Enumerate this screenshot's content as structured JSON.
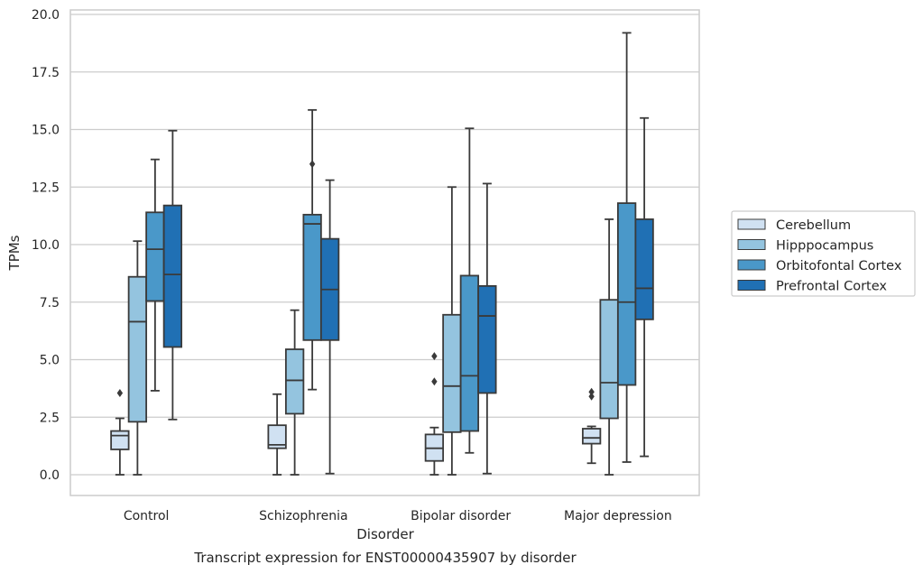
{
  "chart_data": {
    "type": "box",
    "title": "",
    "caption": "Transcript expression for ENST00000435907 by disorder",
    "xlabel": "Disorder",
    "ylabel": "TPMs",
    "ylim": [
      -0.9,
      20.2
    ],
    "yticks": [
      "0.0",
      "2.5",
      "5.0",
      "7.5",
      "10.0",
      "12.5",
      "15.0",
      "17.5",
      "20.0"
    ],
    "grid": "horizontal",
    "legend_position": "right",
    "categories": [
      "Control",
      "Schizophrenia",
      "Bipolar disorder",
      "Major depression"
    ],
    "series": [
      {
        "name": "Cerebellum",
        "color": "#d0e1f2",
        "boxes": [
          {
            "whislo": 0.0,
            "q1": 1.1,
            "med": 1.7,
            "q3": 1.9,
            "whishi": 2.45,
            "fliers": [
              3.55
            ]
          },
          {
            "whislo": 0.0,
            "q1": 1.15,
            "med": 1.3,
            "q3": 2.15,
            "whishi": 3.5,
            "fliers": []
          },
          {
            "whislo": 0.0,
            "q1": 0.6,
            "med": 1.15,
            "q3": 1.75,
            "whishi": 2.05,
            "fliers": [
              4.05,
              5.15
            ]
          },
          {
            "whislo": 0.5,
            "q1": 1.35,
            "med": 1.6,
            "q3": 2.0,
            "whishi": 2.1,
            "fliers": [
              3.4,
              3.6
            ]
          }
        ]
      },
      {
        "name": "Hipppocampus",
        "color": "#94c4df",
        "boxes": [
          {
            "whislo": 0.0,
            "q1": 2.3,
            "med": 6.65,
            "q3": 8.6,
            "whishi": 10.15,
            "fliers": []
          },
          {
            "whislo": 0.0,
            "q1": 2.65,
            "med": 4.1,
            "q3": 5.45,
            "whishi": 7.15,
            "fliers": []
          },
          {
            "whislo": 0.0,
            "q1": 1.85,
            "med": 3.85,
            "q3": 6.95,
            "whishi": 12.5,
            "fliers": []
          },
          {
            "whislo": 0.0,
            "q1": 2.45,
            "med": 4.0,
            "q3": 7.6,
            "whishi": 11.1,
            "fliers": []
          }
        ]
      },
      {
        "name": "Orbitofontal Cortex",
        "color": "#4a98c9",
        "boxes": [
          {
            "whislo": 3.65,
            "q1": 7.55,
            "med": 9.8,
            "q3": 11.4,
            "whishi": 13.7,
            "fliers": []
          },
          {
            "whislo": 3.7,
            "q1": 5.85,
            "med": 10.9,
            "q3": 11.3,
            "whishi": 15.85,
            "fliers": [
              13.5
            ]
          },
          {
            "whislo": 0.95,
            "q1": 1.9,
            "med": 4.3,
            "q3": 8.65,
            "whishi": 15.05,
            "fliers": []
          },
          {
            "whislo": 0.55,
            "q1": 3.9,
            "med": 7.5,
            "q3": 11.8,
            "whishi": 19.2,
            "fliers": []
          }
        ]
      },
      {
        "name": "Prefrontal Cortex",
        "color": "#2070b4",
        "boxes": [
          {
            "whislo": 2.4,
            "q1": 5.55,
            "med": 8.7,
            "q3": 11.7,
            "whishi": 14.95,
            "fliers": []
          },
          {
            "whislo": 0.05,
            "q1": 5.85,
            "med": 8.05,
            "q3": 10.25,
            "whishi": 12.8,
            "fliers": []
          },
          {
            "whislo": 0.05,
            "q1": 3.55,
            "med": 6.9,
            "q3": 8.2,
            "whishi": 12.65,
            "fliers": []
          },
          {
            "whislo": 0.8,
            "q1": 6.75,
            "med": 8.1,
            "q3": 11.1,
            "whishi": 15.5,
            "fliers": []
          }
        ]
      }
    ]
  }
}
